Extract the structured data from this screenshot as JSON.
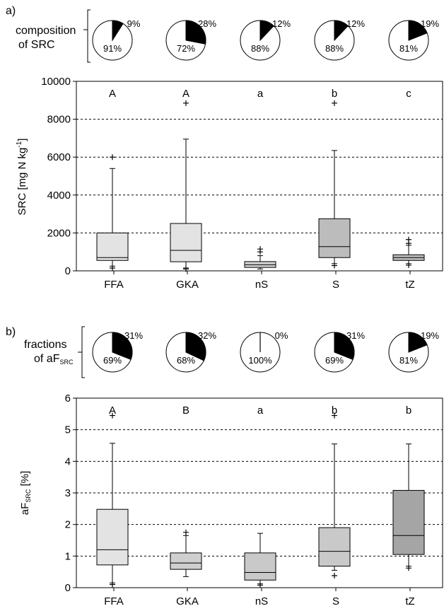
{
  "chart_data": [
    {
      "type": "box",
      "panel_label": "a)",
      "pie_caption_line1": "composition",
      "pie_caption_line2": "of SRC",
      "categories": [
        "FFA",
        "GKA",
        "nS",
        "S",
        "tZ"
      ],
      "ylabel_main": "SRC  [mg N kg",
      "ylabel_sup": "-1",
      "ylabel_close": "]",
      "ylim": [
        0,
        10000
      ],
      "yticks": [
        0,
        2000,
        4000,
        6000,
        8000,
        10000
      ],
      "ytick_labels": [
        "0",
        "2000",
        "4000",
        "6000",
        "8000",
        "10000"
      ],
      "grid": "dotted horizontal",
      "letters": [
        "A",
        "A",
        "a",
        "b",
        "c"
      ],
      "pies": [
        {
          "small_pct": 9,
          "large_pct": 91,
          "small_label": "9%",
          "large_label": "91%"
        },
        {
          "small_pct": 28,
          "large_pct": 72,
          "small_label": "28%",
          "large_label": "72%"
        },
        {
          "small_pct": 12,
          "large_pct": 88,
          "small_label": "12%",
          "large_label": "88%"
        },
        {
          "small_pct": 12,
          "large_pct": 88,
          "small_label": "12%",
          "large_label": "88%"
        },
        {
          "small_pct": 19,
          "large_pct": 81,
          "small_label": "19%",
          "large_label": "81%"
        }
      ],
      "boxes": [
        {
          "q1": 550,
          "median": 700,
          "q3": 2000,
          "whisker_low": 250,
          "whisker_high": 5400,
          "outliers": [
            150,
            6000
          ],
          "color": "#e3e3e3"
        },
        {
          "q1": 480,
          "median": 1080,
          "q3": 2500,
          "whisker_low": 150,
          "whisker_high": 6950,
          "outliers": [
            100,
            8850
          ],
          "color": "#e3e3e3"
        },
        {
          "q1": 180,
          "median": 320,
          "q3": 490,
          "whisker_low": 100,
          "whisker_high": 800,
          "outliers": [
            1000,
            1150
          ],
          "color": "#cfcfcf"
        },
        {
          "q1": 700,
          "median": 1280,
          "q3": 2750,
          "whisker_low": 380,
          "whisker_high": 6350,
          "outliers": [
            280,
            8850
          ],
          "color": "#bcbcbc"
        },
        {
          "q1": 550,
          "median": 700,
          "q3": 850,
          "whisker_low": 380,
          "whisker_high": 1350,
          "outliers": [
            300,
            1450,
            1650
          ],
          "color": "#bcbcbc"
        }
      ]
    },
    {
      "type": "box",
      "panel_label": "b)",
      "pie_caption_line1": "fractions",
      "pie_caption_line2": "of aF",
      "pie_caption_sub": "SRC",
      "categories": [
        "FFA",
        "GKA",
        "nS",
        "S",
        "tZ"
      ],
      "ylabel_main": "aF",
      "ylabel_sub": "SRC",
      "ylabel_rest": " [%]",
      "ylim": [
        0,
        6
      ],
      "yticks": [
        0,
        1,
        2,
        3,
        4,
        5,
        6
      ],
      "ytick_labels": [
        "0",
        "1",
        "2",
        "3",
        "4",
        "5",
        "6"
      ],
      "grid": "dotted horizontal",
      "letters": [
        "A",
        "B",
        "a",
        "b",
        "b"
      ],
      "pies": [
        {
          "small_pct": 31,
          "large_pct": 69,
          "small_label": "31%",
          "large_label": "69%"
        },
        {
          "small_pct": 32,
          "large_pct": 68,
          "small_label": "32%",
          "large_label": "68%"
        },
        {
          "small_pct": 0,
          "large_pct": 100,
          "small_label": "0%",
          "large_label": "100%"
        },
        {
          "small_pct": 31,
          "large_pct": 69,
          "small_label": "31%",
          "large_label": "69%"
        },
        {
          "small_pct": 19,
          "large_pct": 81,
          "small_label": "19%",
          "large_label": "81%"
        }
      ],
      "boxes": [
        {
          "q1": 0.72,
          "median": 1.2,
          "q3": 2.48,
          "whisker_low": 0.15,
          "whisker_high": 4.57,
          "outliers": [
            0.1,
            5.45
          ],
          "color": "#e3e3e3"
        },
        {
          "q1": 0.58,
          "median": 0.78,
          "q3": 1.1,
          "whisker_low": 0.35,
          "whisker_high": 1.65,
          "outliers": [
            1.75
          ],
          "color": "#cfcfcf"
        },
        {
          "q1": 0.24,
          "median": 0.48,
          "q3": 1.1,
          "whisker_low": 0.12,
          "whisker_high": 1.72,
          "outliers": [
            0.08
          ],
          "color": "#c9c9c9"
        },
        {
          "q1": 0.68,
          "median": 1.15,
          "q3": 1.9,
          "whisker_low": 0.55,
          "whisker_high": 4.55,
          "outliers": [
            0.38,
            5.45
          ],
          "color": "#c9c9c9"
        },
        {
          "q1": 1.05,
          "median": 1.65,
          "q3": 3.08,
          "whisker_low": 0.68,
          "whisker_high": 4.55,
          "outliers": [
            0.62
          ],
          "color": "#a5a5a5"
        }
      ]
    }
  ]
}
